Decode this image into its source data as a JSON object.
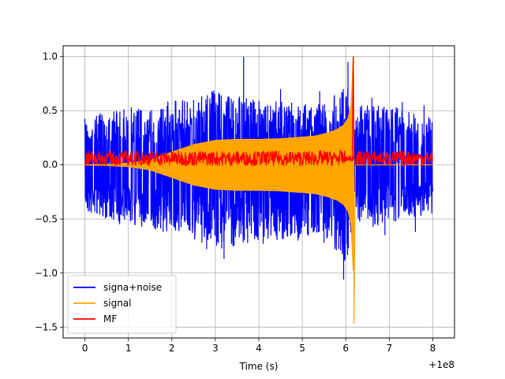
{
  "chart_data": {
    "type": "line",
    "title": "",
    "xlabel": "Time (s)",
    "ylabel": "",
    "x_offset_label": "+1e8",
    "xlim": [
      -0.5,
      8.5
    ],
    "ylim": [
      -1.6,
      1.1
    ],
    "x_ticks": [
      0,
      1,
      2,
      3,
      4,
      5,
      6,
      7,
      8
    ],
    "x_tick_labels": [
      "0",
      "1",
      "2",
      "3",
      "4",
      "5",
      "6",
      "7",
      "8"
    ],
    "y_ticks": [
      -1.5,
      -1.0,
      -0.5,
      0.0,
      0.5,
      1.0
    ],
    "y_tick_labels": [
      "−1.5",
      "−1.0",
      "−0.5",
      "0.0",
      "0.5",
      "1.0"
    ],
    "grid": true,
    "legend_position": "lower-left",
    "series": [
      {
        "name": "signa+noise",
        "color": "#0000ff",
        "envelope": {
          "x": [
            0,
            0.5,
            1,
            1.5,
            2,
            2.5,
            3,
            3.5,
            4,
            4.5,
            5,
            5.5,
            6,
            6.2,
            6.3,
            7,
            7.5,
            8
          ],
          "upper": [
            0.45,
            0.5,
            0.55,
            0.55,
            0.6,
            0.62,
            0.7,
            0.65,
            0.6,
            0.6,
            0.58,
            0.6,
            0.8,
            0.4,
            0.55,
            0.55,
            0.5,
            0.45
          ],
          "lower": [
            -0.45,
            -0.5,
            -0.55,
            -0.6,
            -0.62,
            -0.7,
            -0.8,
            -0.75,
            -0.7,
            -0.7,
            -0.68,
            -0.65,
            -0.95,
            -0.45,
            -0.6,
            -0.55,
            -0.5,
            -0.45
          ]
        },
        "spikes": [
          [
            3.65,
            1.0
          ],
          [
            6.05,
            0.95
          ],
          [
            5.95,
            -1.06
          ],
          [
            3.2,
            -0.87
          ],
          [
            0.3,
            0.38
          ],
          [
            0.65,
            0.42
          ],
          [
            1.2,
            0.5
          ],
          [
            2.5,
            0.6
          ],
          [
            3.1,
            0.65
          ],
          [
            4.5,
            0.7
          ],
          [
            5.4,
            0.68
          ],
          [
            6.6,
            0.62
          ],
          [
            7.3,
            0.58
          ],
          [
            7.8,
            0.55
          ],
          [
            0.8,
            -0.55
          ],
          [
            1.8,
            -0.62
          ],
          [
            2.8,
            -0.78
          ],
          [
            4.1,
            -0.73
          ],
          [
            4.9,
            -0.7
          ],
          [
            5.5,
            -0.72
          ],
          [
            6.9,
            -0.65
          ],
          [
            7.6,
            -0.62
          ]
        ]
      },
      {
        "name": "signal",
        "color": "#ffa500",
        "chirp_envelope": {
          "x": [
            0.0,
            0.5,
            1.0,
            1.5,
            2.0,
            2.5,
            3.0,
            3.5,
            4.0,
            4.5,
            5.0,
            5.3,
            5.6,
            5.8,
            5.95,
            6.05,
            6.12,
            6.17
          ],
          "amplitude": [
            0.005,
            0.01,
            0.02,
            0.05,
            0.12,
            0.19,
            0.23,
            0.24,
            0.24,
            0.245,
            0.26,
            0.27,
            0.3,
            0.33,
            0.37,
            0.43,
            0.55,
            1.0
          ]
        },
        "peak": [
          [
            6.18,
            1.0
          ],
          [
            6.19,
            -1.47
          ]
        ]
      },
      {
        "name": "MF",
        "color": "#ff0000",
        "baseline_band": {
          "x": [
            0,
            8
          ],
          "center": 0.06,
          "half_width": 0.07
        },
        "peak": [
          [
            6.17,
            1.0
          ]
        ]
      }
    ]
  }
}
